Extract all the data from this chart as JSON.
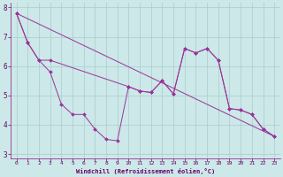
{
  "xlabel": "Windchill (Refroidissement éolien,°C)",
  "bg_color": "#cce8e8",
  "grid_color": "#aacccc",
  "line_color": "#993399",
  "xlim": [
    -0.5,
    23.5
  ],
  "ylim": [
    2.85,
    8.15
  ],
  "yticks": [
    3,
    4,
    5,
    6,
    7,
    8
  ],
  "xticks": [
    0,
    1,
    2,
    3,
    4,
    5,
    6,
    7,
    8,
    9,
    10,
    11,
    12,
    13,
    14,
    15,
    16,
    17,
    18,
    19,
    20,
    21,
    22,
    23
  ],
  "line1_x": [
    0,
    1,
    2,
    3,
    10,
    11,
    12,
    13,
    14,
    15,
    16,
    17,
    18,
    19,
    20,
    21,
    22,
    23
  ],
  "line1_y": [
    7.8,
    6.8,
    6.2,
    6.2,
    5.3,
    5.15,
    5.1,
    5.5,
    5.05,
    6.6,
    6.45,
    6.6,
    6.2,
    4.55,
    4.5,
    4.35,
    3.85,
    3.6
  ],
  "line2_x": [
    0,
    1,
    2,
    3,
    4,
    5,
    6,
    7,
    8,
    9,
    10,
    11,
    12,
    13,
    14,
    15,
    16,
    17,
    18,
    19,
    20,
    21,
    22,
    23
  ],
  "line2_y": [
    7.8,
    6.8,
    6.2,
    5.8,
    4.7,
    4.35,
    4.35,
    3.85,
    3.5,
    3.45,
    5.3,
    5.15,
    5.1,
    5.5,
    5.05,
    6.6,
    6.45,
    6.6,
    6.2,
    4.55,
    4.5,
    4.35,
    3.85,
    3.6
  ],
  "line3_x": [
    0,
    23
  ],
  "line3_y": [
    7.8,
    3.6
  ]
}
